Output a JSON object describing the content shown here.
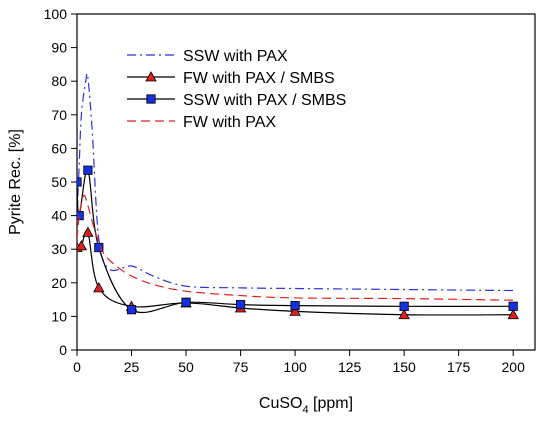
{
  "chart_data": {
    "type": "line",
    "title": "",
    "xlabel_main": "CuSO",
    "xlabel_sub": "4",
    "xlabel_unit": " [ppm]",
    "ylabel": "Pyrite Rec. [%]",
    "xlim": [
      0,
      210
    ],
    "ylim": [
      0,
      100
    ],
    "x_ticks": [
      0,
      25,
      50,
      75,
      100,
      125,
      150,
      175,
      200
    ],
    "y_ticks": [
      0,
      10,
      20,
      30,
      40,
      50,
      60,
      70,
      80,
      90,
      100
    ],
    "grid": false,
    "legend_position": "top-right",
    "series": [
      {
        "name": "SSW with PAX",
        "color": "#2f2fe0",
        "line": "dash-dot",
        "marker": "none",
        "x": [
          0,
          1,
          2,
          4,
          5,
          7,
          10,
          15,
          25,
          35,
          50,
          75,
          100,
          150,
          200
        ],
        "y": [
          40,
          55,
          70,
          80,
          81,
          65,
          33,
          24,
          25,
          22,
          19,
          18.5,
          18.3,
          18,
          17.7
        ]
      },
      {
        "name": "FW with PAX / SMBS",
        "color": "#000000",
        "line": "solid",
        "marker": "triangle",
        "marker_color": "#e02020",
        "x": [
          0,
          2,
          5,
          10,
          25,
          50,
          75,
          100,
          150,
          200
        ],
        "y": [
          30.5,
          31,
          35,
          18.5,
          13,
          14,
          12.5,
          11.5,
          10.5,
          10.5
        ]
      },
      {
        "name": "SSW with PAX / SMBS",
        "color": "#000000",
        "line": "solid",
        "marker": "square",
        "marker_color": "#1530e0",
        "x": [
          0,
          1,
          5,
          10,
          25,
          50,
          75,
          100,
          150,
          200
        ],
        "y": [
          50,
          40,
          53.5,
          30.5,
          12,
          14.2,
          13.5,
          13.2,
          13,
          13
        ]
      },
      {
        "name": "FW with PAX",
        "color": "#e02020",
        "line": "dash",
        "marker": "none",
        "x": [
          0,
          1,
          3,
          5,
          8,
          12,
          18,
          25,
          35,
          50,
          75,
          100,
          150,
          200
        ],
        "y": [
          33,
          40,
          46,
          43,
          36,
          29,
          25,
          22,
          19.5,
          17.5,
          16.2,
          15.5,
          15.3,
          14.8
        ]
      }
    ]
  }
}
